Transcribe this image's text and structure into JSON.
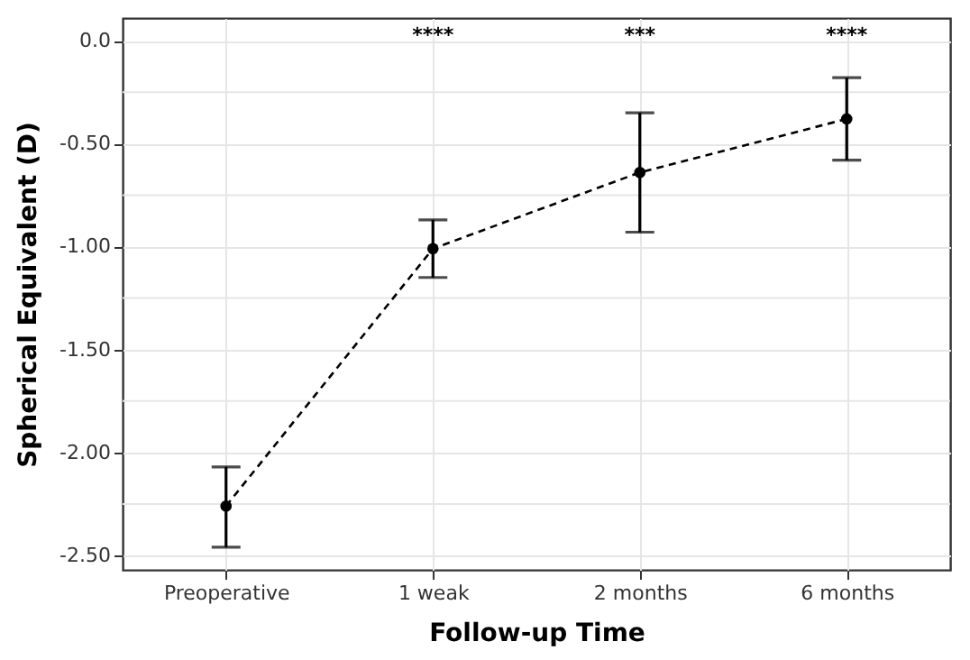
{
  "chart_data": {
    "type": "line",
    "xlabel": "Follow-up Time",
    "ylabel": "Spherical Equivalent (D)",
    "categories": [
      "Preoperative",
      "1 weak",
      "2 months",
      "6 months"
    ],
    "series": [
      {
        "color": "#000000",
        "values": [
          -2.26,
          -1.01,
          -0.64,
          -0.38
        ],
        "errors": [
          [
            -2.46,
            -2.07
          ],
          [
            -1.15,
            -0.87
          ],
          [
            -0.93,
            -0.35
          ],
          [
            -0.58,
            -0.18
          ]
        ]
      }
    ],
    "ylim": [
      -2.57,
      0.11
    ],
    "yticks": [
      {
        "value": 0,
        "label": "0.0"
      },
      {
        "value": -0.25,
        "label": null
      },
      {
        "value": -0.5,
        "label": "-0.50"
      },
      {
        "value": -0.75,
        "label": null
      },
      {
        "value": -1,
        "label": "-1.00"
      },
      {
        "value": -1.25,
        "label": null
      },
      {
        "value": -1.5,
        "label": "-1.50"
      },
      {
        "value": -1.75,
        "label": null
      },
      {
        "value": -2,
        "label": "-2.00"
      },
      {
        "value": -2.25,
        "label": null
      },
      {
        "value": -2.5,
        "label": "-2.50"
      }
    ],
    "annotations": [
      "****",
      "***",
      "****"
    ],
    "grid": true,
    "marker": "circle",
    "line_style": "dashed"
  }
}
